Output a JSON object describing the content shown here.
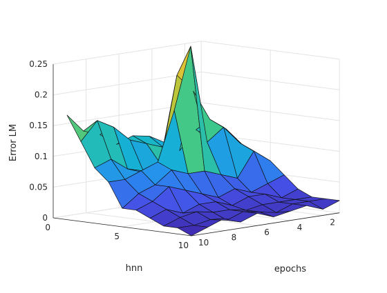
{
  "chart_data": {
    "type": "surface",
    "title": "",
    "xlabel": "hnn",
    "ylabel": "epochs",
    "zlabel": "Error LM",
    "hnn": [
      1,
      2,
      3,
      4,
      5,
      6,
      7,
      8,
      9,
      10
    ],
    "epochs": [
      1,
      2,
      3,
      4,
      5,
      6,
      7,
      8,
      9,
      10
    ],
    "xticks": [
      0,
      5,
      10
    ],
    "yticks": [
      2,
      4,
      6,
      8,
      10
    ],
    "zticks": [
      0,
      0.05,
      0.1,
      0.15,
      0.2,
      0.25
    ],
    "xlim": [
      0,
      10
    ],
    "ylim": [
      1,
      10
    ],
    "zlim": [
      0,
      0.25
    ],
    "grid": true,
    "colormap": "parula",
    "z_rows_by_hnn": [
      [
        0.12,
        0.11,
        0.13,
        0.1,
        0.115,
        0.12,
        0.11,
        0.13,
        0.14,
        0.17
      ],
      [
        0.09,
        0.1,
        0.12,
        0.09,
        0.1,
        0.11,
        0.12,
        0.145,
        0.16,
        0.13
      ],
      [
        0.09,
        0.12,
        0.14,
        0.19,
        0.22,
        0.08,
        0.07,
        0.08,
        0.1,
        0.09
      ],
      [
        0.08,
        0.1,
        0.13,
        0.11,
        0.27,
        0.17,
        0.09,
        0.08,
        0.07,
        0.07
      ],
      [
        0.07,
        0.09,
        0.05,
        0.06,
        0.07,
        0.07,
        0.08,
        0.06,
        0.05,
        0.03
      ],
      [
        0.05,
        0.04,
        0.03,
        0.04,
        0.03,
        0.04,
        0.05,
        0.06,
        0.04,
        0.03
      ],
      [
        0.03,
        0.02,
        0.03,
        0.03,
        0.02,
        0.03,
        0.03,
        0.02,
        0.03,
        0.02
      ],
      [
        0.02,
        0.02,
        0.02,
        0.02,
        0.015,
        0.02,
        0.02,
        0.025,
        0.02,
        0.01
      ],
      [
        0.02,
        0.02,
        0.02,
        0.01,
        0.015,
        0.02,
        0.01,
        0.015,
        0.01,
        0.01
      ],
      [
        0.02,
        0.01,
        0.02,
        0.015,
        0.01,
        0.02,
        0.01,
        0.02,
        0.01,
        0.0
      ]
    ]
  }
}
